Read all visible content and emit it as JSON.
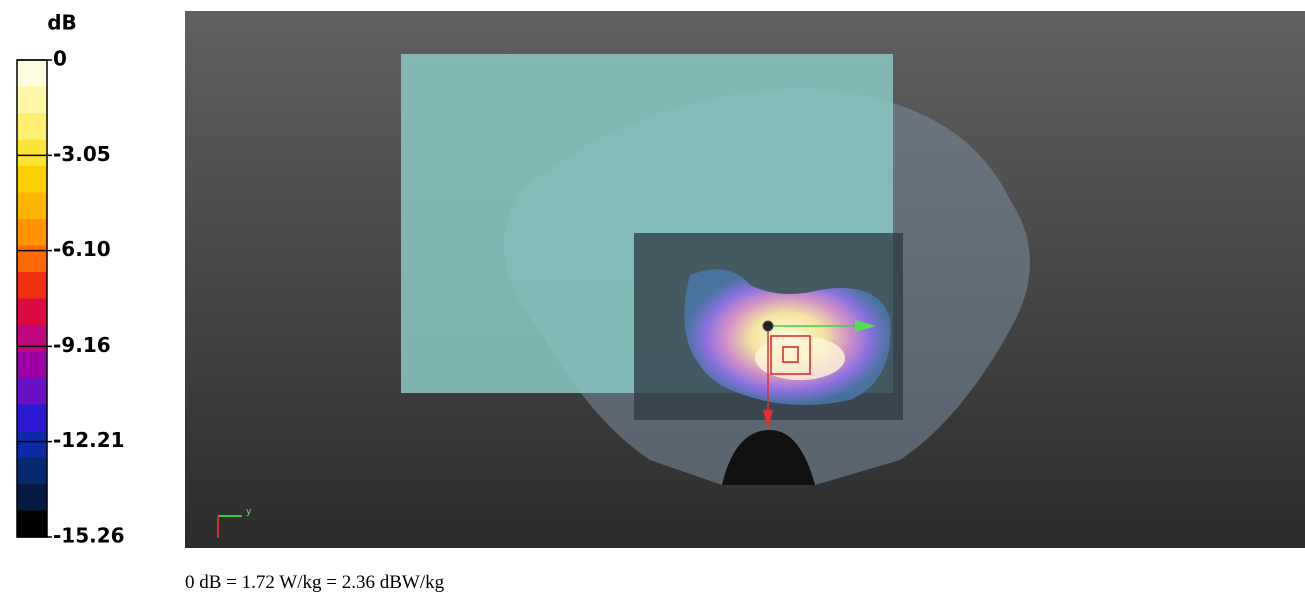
{
  "colorbar": {
    "unit": "dB",
    "ticks": [
      0,
      -3.05,
      {
        "value": -6.1,
        "label": "-6.10"
      },
      -9.16,
      -12.21,
      -15.26
    ],
    "colors": [
      "#fffde0",
      "#fff7a8",
      "#ffef70",
      "#ffe438",
      "#ffd000",
      "#ffb400",
      "#ff9400",
      "#ff6a00",
      "#f03010",
      "#dc0a40",
      "#c0087e",
      "#9a00a4",
      "#6810c4",
      "#2c18d0",
      "#0a2aa8",
      "#062a70",
      "#041a40",
      "#000000"
    ]
  },
  "view": {
    "axis_label": "y"
  },
  "caption": "0 dB = 1.72 W/kg = 2.36 dBW/kg"
}
